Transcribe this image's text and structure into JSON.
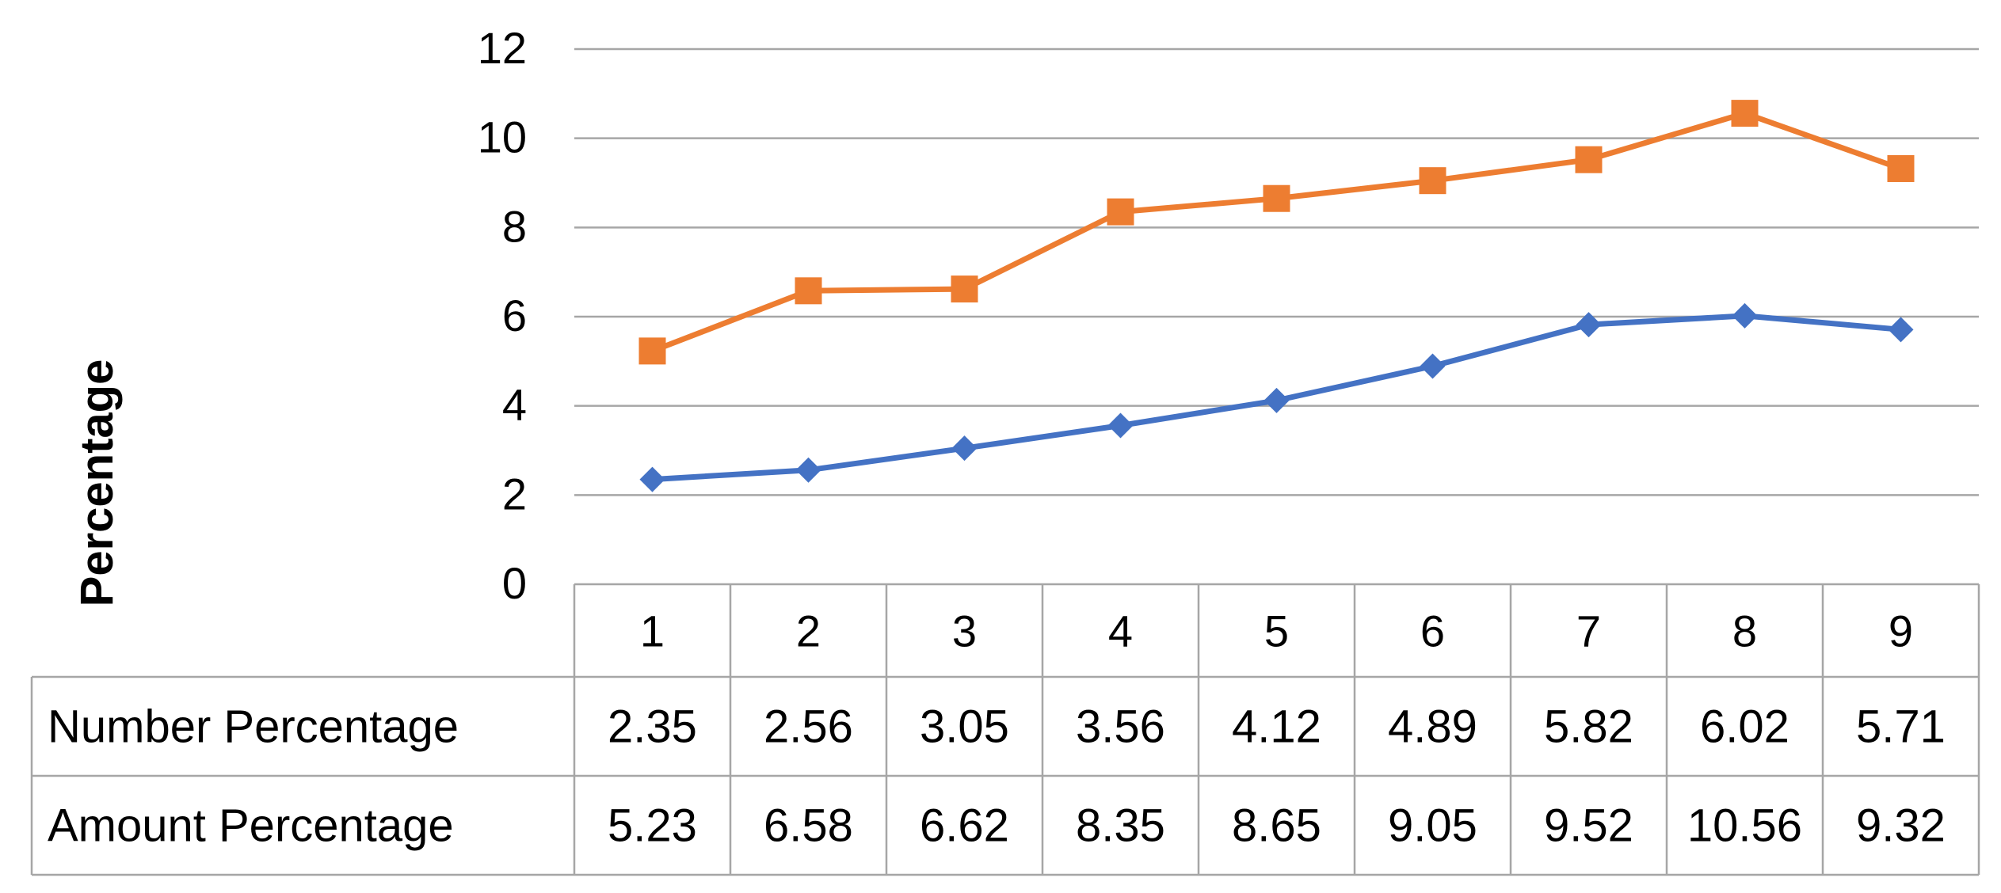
{
  "chart_data": {
    "type": "line",
    "title": "",
    "xlabel": "",
    "ylabel": "Percentage",
    "categories": [
      "1",
      "2",
      "3",
      "4",
      "5",
      "6",
      "7",
      "8",
      "9"
    ],
    "ylim": [
      0,
      12
    ],
    "yticks": [
      "0",
      "2",
      "4",
      "6",
      "8",
      "10",
      "12"
    ],
    "grid": true,
    "legend": "data-table",
    "series": [
      {
        "name": "Number Percentage",
        "values": [
          2.35,
          2.56,
          3.05,
          3.56,
          4.12,
          4.89,
          5.82,
          6.02,
          5.71
        ],
        "labels": [
          "2.35",
          "2.56",
          "3.05",
          "3.56",
          "4.12",
          "4.89",
          "5.82",
          "6.02",
          "5.71"
        ],
        "color": "#4472C4",
        "marker": "diamond"
      },
      {
        "name": "Amount Percentage",
        "values": [
          5.23,
          6.58,
          6.62,
          8.35,
          8.65,
          9.05,
          9.52,
          10.56,
          9.32
        ],
        "labels": [
          "5.23",
          "6.58",
          "6.62",
          "8.35",
          "8.65",
          "9.05",
          "9.52",
          "10.56",
          "9.32"
        ],
        "color": "#ED7D31",
        "marker": "square"
      }
    ]
  }
}
